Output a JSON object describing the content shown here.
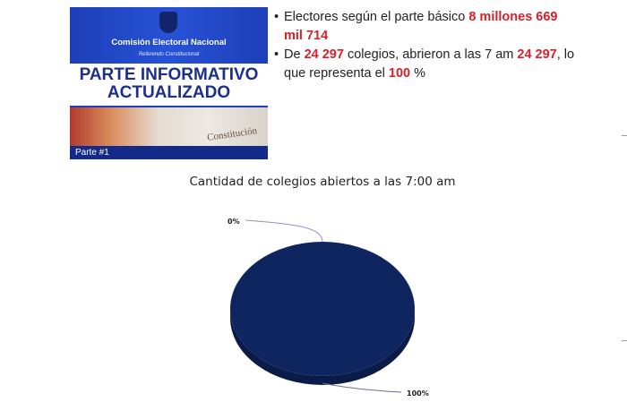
{
  "banner": {
    "organization": "Comisión Electoral Nacional",
    "subtitle": "Referendo Constitucional",
    "headline_1": "PARTE INFORMATIVO",
    "headline_2": "ACTUALIZADO",
    "photo_text": "Constitución",
    "part_label": "Parte #1"
  },
  "facts": [
    {
      "text": "Electores según el parte básico ",
      "highlight": "8 millones 669 mil 714"
    },
    {
      "pre": "De ",
      "h1": "24 297",
      "mid": " colegios, abrieron a las 7 am ",
      "h2": "24 297",
      "post": ", lo que representa el ",
      "h3": "100",
      "end": " %"
    }
  ],
  "colors": {
    "highlight": "#d9202a",
    "pie": "#0f2560",
    "pie_side": "#0a1b48"
  },
  "chart_data": {
    "type": "pie",
    "title": "Cantidad de colegios abiertos a las 7:00 am",
    "style": "3d",
    "values": [
      0,
      100
    ],
    "data_labels": [
      "0%",
      "100%"
    ]
  }
}
